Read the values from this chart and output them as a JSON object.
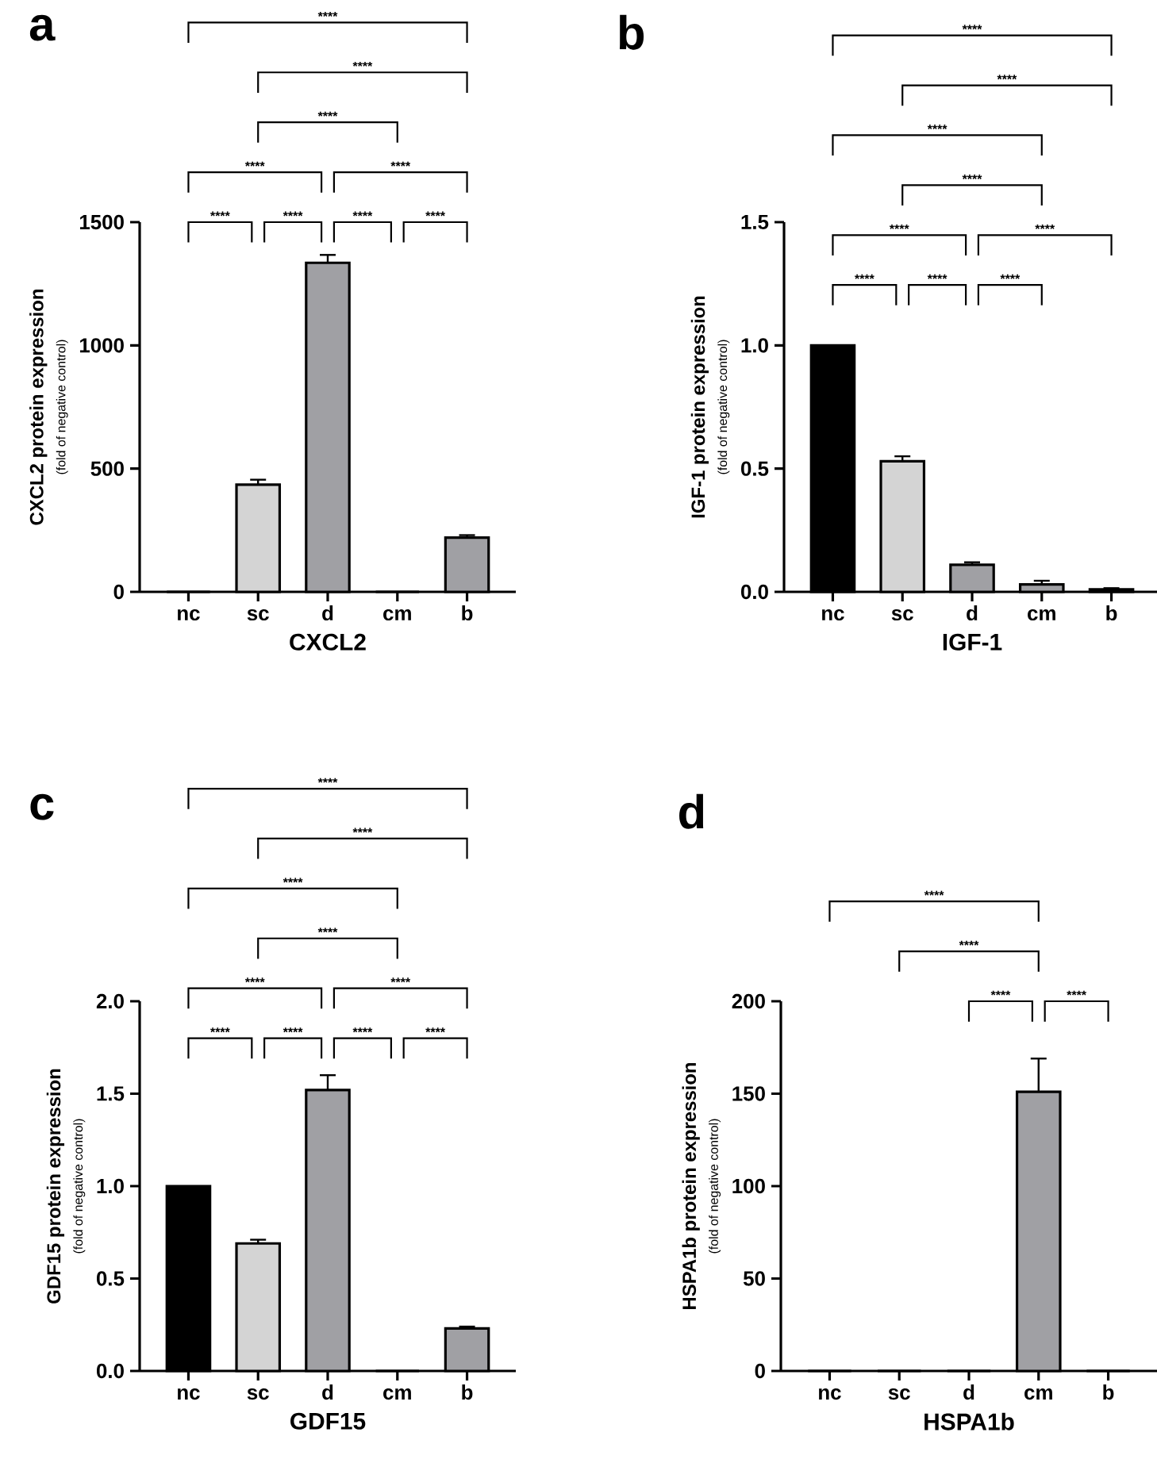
{
  "chart_data": [
    {
      "type": "bar",
      "title": "a",
      "xlabel": "CXCL2",
      "ylabel": "CXCL2 protein expression",
      "categories": [
        "nc",
        "sc",
        "d",
        "cm",
        "b"
      ],
      "values": [
        0,
        435,
        1335,
        0,
        220
      ],
      "errors": [
        null,
        20,
        32,
        null,
        10
      ],
      "colors": [
        "#000000",
        "#d4d4d4",
        "#a0a0a4",
        "#a0a0a4",
        "#a0a0a4"
      ],
      "ylim": [
        0,
        1500
      ],
      "yticks": [
        0,
        500,
        1000,
        1500
      ],
      "annotations": [
        "(fold of negative control)",
        "****",
        "****",
        "****",
        "****",
        "****",
        "****",
        "****",
        "****",
        "****"
      ]
    },
    {
      "type": "bar",
      "title": "b",
      "xlabel": "IGF-1",
      "ylabel": "IGF-1 protein expression",
      "categories": [
        "nc",
        "sc",
        "d",
        "cm",
        "b"
      ],
      "values": [
        1.0,
        0.53,
        0.11,
        0.03,
        0.01
      ],
      "errors": [
        null,
        0.02,
        0.01,
        0.015,
        0.005
      ],
      "colors": [
        "#000000",
        "#d4d4d4",
        "#a0a0a4",
        "#a0a0a4",
        "#a0a0a4"
      ],
      "ylim": [
        0,
        1.5
      ],
      "yticks": [
        {
          "value": 0,
          "label": "0.0"
        },
        {
          "value": 0.5,
          "label": "0.5"
        },
        {
          "value": 1,
          "label": "1.0"
        },
        {
          "value": 1.5,
          "label": "1.5"
        }
      ],
      "annotations": [
        "(fold of negative control)",
        "****",
        "****",
        "****",
        "****",
        "****",
        "****",
        "****",
        "****",
        "****"
      ]
    },
    {
      "type": "bar",
      "title": "c",
      "xlabel": "GDF15",
      "ylabel": "GDF15 protein expression",
      "categories": [
        "nc",
        "sc",
        "d",
        "cm",
        "b"
      ],
      "values": [
        1.0,
        0.69,
        1.52,
        0,
        0.23
      ],
      "errors": [
        null,
        0.02,
        0.08,
        null,
        0.01
      ],
      "colors": [
        "#000000",
        "#d4d4d4",
        "#a0a0a4",
        "#a0a0a4",
        "#a0a0a4"
      ],
      "ylim": [
        0,
        2.0
      ],
      "yticks": [
        {
          "value": 0,
          "label": "0.0"
        },
        {
          "value": 0.5,
          "label": "0.5"
        },
        {
          "value": 1,
          "label": "1.0"
        },
        {
          "value": 1.5,
          "label": "1.5"
        },
        {
          "value": 2,
          "label": "2.0"
        }
      ],
      "annotations": [
        "(fold of negative control)",
        "****",
        "****",
        "****",
        "****",
        "****",
        "****",
        "****",
        "****",
        "****",
        "****"
      ]
    },
    {
      "type": "bar",
      "title": "d",
      "xlabel": "HSPA1b",
      "ylabel": "HSPA1b protein expression",
      "categories": [
        "nc",
        "sc",
        "d",
        "cm",
        "b"
      ],
      "values": [
        0,
        0,
        0,
        151,
        0
      ],
      "errors": [
        null,
        null,
        null,
        18,
        null
      ],
      "colors": [
        "#000000",
        "#d4d4d4",
        "#a0a0a4",
        "#a0a0a4",
        "#a0a0a4"
      ],
      "ylim": [
        0,
        200
      ],
      "yticks": [
        0,
        50,
        100,
        150,
        200
      ],
      "annotations": [
        "(fold of negative control)",
        "****",
        "****",
        "****",
        "****"
      ]
    }
  ]
}
